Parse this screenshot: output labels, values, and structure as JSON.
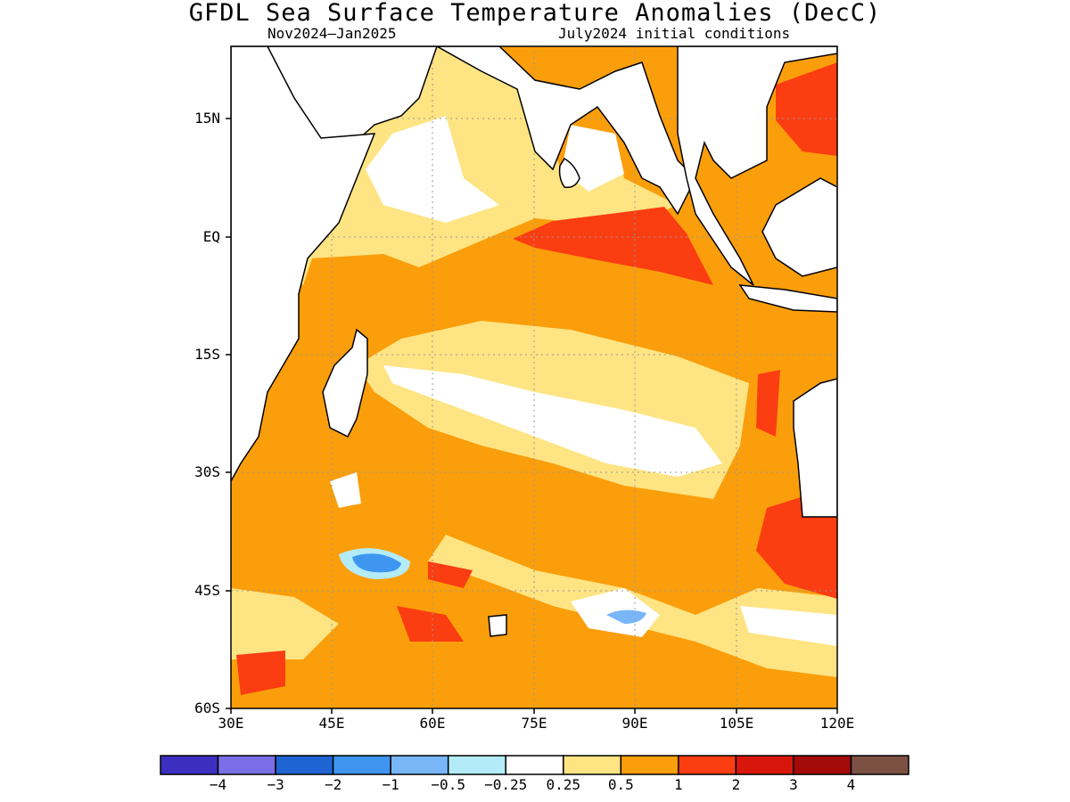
{
  "header": {
    "title": "GFDL Sea Surface Temperature Anomalies (DecC)",
    "period": "Nov2024–Jan2025",
    "init": "July2024 initial conditions"
  },
  "map": {
    "lon_range": [
      30,
      120
    ],
    "lat_range": [
      -60,
      24
    ],
    "lon_ticks": [
      "30E",
      "45E",
      "60E",
      "75E",
      "90E",
      "105E",
      "120E"
    ],
    "lat_ticks": [
      "15N",
      "EQ",
      "15S",
      "30S",
      "45S",
      "60S"
    ],
    "grid": true
  },
  "colorbar": {
    "colors": [
      "#3c2fc0",
      "#7b6fe8",
      "#1f64d3",
      "#3e96f0",
      "#78b6f8",
      "#b3ecf8",
      "#ffffff",
      "#fee483",
      "#fb9e0b",
      "#fb3d12",
      "#d9160c",
      "#a50a0a",
      "#7c5144"
    ],
    "labels": [
      "−4",
      "−3",
      "−2",
      "−1",
      "−0.5",
      "−0.25",
      "0.25",
      "0.5",
      "1",
      "2",
      "3",
      "4"
    ]
  }
}
